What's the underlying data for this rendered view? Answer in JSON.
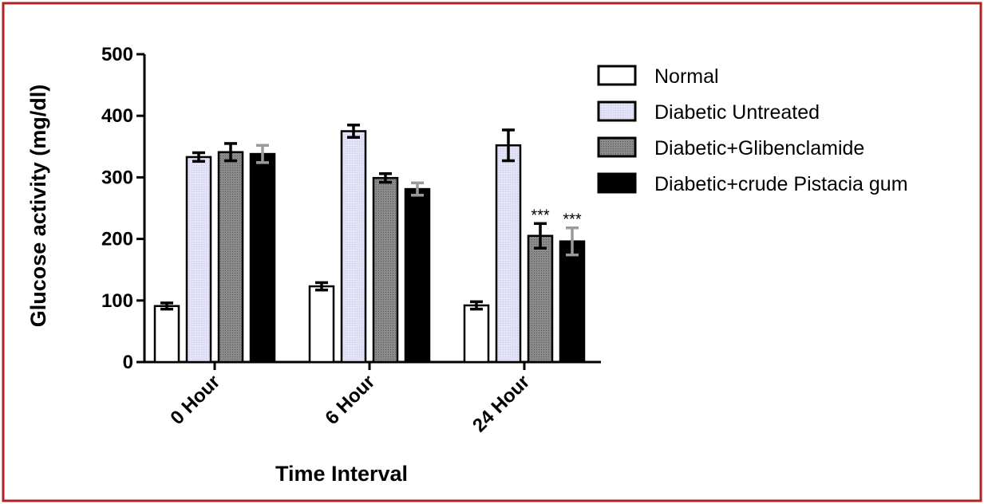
{
  "chart_data": {
    "type": "bar",
    "title": "",
    "xlabel": "Time Interval",
    "ylabel": "Glucose activity (mg/dl)",
    "ylim": [
      0,
      500
    ],
    "yticks": [
      0,
      100,
      200,
      300,
      400,
      500
    ],
    "grid": false,
    "legend_position": "right",
    "categories": [
      "0 Hour",
      "6 Hour",
      "24 Hour"
    ],
    "series": [
      {
        "name": "Normal",
        "color": "#ffffff",
        "error_bar_color": "#000000",
        "values": [
          91,
          123,
          92
        ],
        "errors": [
          5,
          6,
          6
        ]
      },
      {
        "name": "Diabetic Untreated",
        "color": "#e3e3f8",
        "error_bar_color": "#000000",
        "values": [
          333,
          375,
          352
        ],
        "errors": [
          7,
          10,
          25
        ]
      },
      {
        "name": "Diabetic+Glibenclamide",
        "color": "#808080",
        "error_bar_color": "#000000",
        "values": [
          341,
          299,
          205
        ],
        "errors": [
          14,
          7,
          20
        ]
      },
      {
        "name": "Diabetic+crude Pistacia gum",
        "color": "#000000",
        "error_bar_color": "#9a9a9a",
        "values": [
          338,
          281,
          196
        ],
        "errors": [
          14,
          10,
          22
        ]
      }
    ],
    "annotations": [
      {
        "text": "***",
        "category": "24 Hour",
        "series": "Diabetic+Glibenclamide"
      },
      {
        "text": "***",
        "category": "24 Hour",
        "series": "Diabetic+crude Pistacia gum"
      }
    ]
  },
  "colors": {
    "frame_border": "#b22222"
  }
}
